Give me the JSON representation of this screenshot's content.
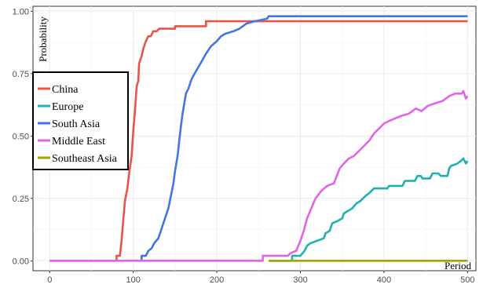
{
  "chart_data": {
    "type": "line",
    "title": "",
    "xlabel": "Period",
    "ylabel": "Probability",
    "xlim": [
      -20,
      510
    ],
    "ylim": [
      -0.04,
      1.02
    ],
    "x_ticks": [
      0,
      100,
      200,
      300,
      400,
      500
    ],
    "x_tick_labels": [
      "0",
      "100",
      "200",
      "300",
      "400",
      "500"
    ],
    "y_ticks": [
      0,
      0.25,
      0.5,
      0.75,
      1.0
    ],
    "y_tick_labels": [
      "0.00",
      "0.25",
      "0.50",
      "0.75",
      "1.00"
    ],
    "grid": true,
    "legend_position": "left",
    "series": [
      {
        "name": "China",
        "color": "#E8534A",
        "points": [
          [
            0,
            0
          ],
          [
            80,
            0
          ],
          [
            80,
            0.02
          ],
          [
            84,
            0.02
          ],
          [
            86,
            0.08
          ],
          [
            88,
            0.16
          ],
          [
            90,
            0.24
          ],
          [
            93,
            0.29
          ],
          [
            95,
            0.35
          ],
          [
            98,
            0.42
          ],
          [
            100,
            0.52
          ],
          [
            102,
            0.6
          ],
          [
            104,
            0.7
          ],
          [
            106,
            0.72
          ],
          [
            107,
            0.79
          ],
          [
            110,
            0.82
          ],
          [
            112,
            0.85
          ],
          [
            115,
            0.88
          ],
          [
            118,
            0.9
          ],
          [
            121,
            0.9
          ],
          [
            124,
            0.92
          ],
          [
            128,
            0.92
          ],
          [
            131,
            0.93
          ],
          [
            150,
            0.93
          ],
          [
            150,
            0.94
          ],
          [
            187,
            0.94
          ],
          [
            187,
            0.96
          ],
          [
            500,
            0.96
          ]
        ]
      },
      {
        "name": "Europe",
        "color": "#1FB1AF",
        "points": [
          [
            262,
            0
          ],
          [
            290,
            0
          ],
          [
            290,
            0.02
          ],
          [
            300,
            0.02
          ],
          [
            305,
            0.04
          ],
          [
            308,
            0.06
          ],
          [
            312,
            0.07
          ],
          [
            320,
            0.08
          ],
          [
            328,
            0.09
          ],
          [
            330,
            0.11
          ],
          [
            335,
            0.12
          ],
          [
            338,
            0.15
          ],
          [
            345,
            0.16
          ],
          [
            350,
            0.17
          ],
          [
            352,
            0.19
          ],
          [
            362,
            0.21
          ],
          [
            367,
            0.23
          ],
          [
            372,
            0.24
          ],
          [
            378,
            0.26
          ],
          [
            382,
            0.27
          ],
          [
            388,
            0.29
          ],
          [
            404,
            0.29
          ],
          [
            406,
            0.3
          ],
          [
            422,
            0.3
          ],
          [
            425,
            0.32
          ],
          [
            437,
            0.32
          ],
          [
            440,
            0.34
          ],
          [
            444,
            0.34
          ],
          [
            446,
            0.33
          ],
          [
            455,
            0.33
          ],
          [
            458,
            0.35
          ],
          [
            465,
            0.35
          ],
          [
            468,
            0.34
          ],
          [
            476,
            0.34
          ],
          [
            478,
            0.37
          ],
          [
            480,
            0.38
          ],
          [
            488,
            0.39
          ],
          [
            492,
            0.4
          ],
          [
            495,
            0.41
          ],
          [
            498,
            0.39
          ],
          [
            500,
            0.4
          ]
        ]
      },
      {
        "name": "South Asia",
        "color": "#4276E8",
        "points": [
          [
            108,
            0
          ],
          [
            110,
            0
          ],
          [
            110,
            0.02
          ],
          [
            115,
            0.02
          ],
          [
            118,
            0.04
          ],
          [
            122,
            0.05
          ],
          [
            125,
            0.07
          ],
          [
            130,
            0.09
          ],
          [
            134,
            0.13
          ],
          [
            138,
            0.17
          ],
          [
            142,
            0.21
          ],
          [
            145,
            0.26
          ],
          [
            148,
            0.31
          ],
          [
            150,
            0.36
          ],
          [
            153,
            0.42
          ],
          [
            155,
            0.48
          ],
          [
            157,
            0.54
          ],
          [
            159,
            0.59
          ],
          [
            161,
            0.63
          ],
          [
            163,
            0.67
          ],
          [
            166,
            0.69
          ],
          [
            170,
            0.73
          ],
          [
            175,
            0.76
          ],
          [
            182,
            0.8
          ],
          [
            187,
            0.83
          ],
          [
            193,
            0.86
          ],
          [
            200,
            0.88
          ],
          [
            205,
            0.9
          ],
          [
            210,
            0.91
          ],
          [
            220,
            0.92
          ],
          [
            227,
            0.93
          ],
          [
            235,
            0.95
          ],
          [
            245,
            0.96
          ],
          [
            260,
            0.97
          ],
          [
            262,
            0.98
          ],
          [
            500,
            0.98
          ]
        ]
      },
      {
        "name": "Middle East",
        "color": "#E164E8",
        "points": [
          [
            0,
            0
          ],
          [
            255,
            0
          ],
          [
            255,
            0.02
          ],
          [
            285,
            0.02
          ],
          [
            288,
            0.03
          ],
          [
            295,
            0.04
          ],
          [
            300,
            0.08
          ],
          [
            304,
            0.12
          ],
          [
            308,
            0.17
          ],
          [
            313,
            0.21
          ],
          [
            318,
            0.25
          ],
          [
            325,
            0.28
          ],
          [
            332,
            0.3
          ],
          [
            340,
            0.31
          ],
          [
            347,
            0.37
          ],
          [
            352,
            0.39
          ],
          [
            358,
            0.41
          ],
          [
            364,
            0.42
          ],
          [
            370,
            0.44
          ],
          [
            376,
            0.46
          ],
          [
            382,
            0.48
          ],
          [
            388,
            0.51
          ],
          [
            394,
            0.53
          ],
          [
            400,
            0.55
          ],
          [
            406,
            0.56
          ],
          [
            413,
            0.57
          ],
          [
            420,
            0.58
          ],
          [
            430,
            0.59
          ],
          [
            438,
            0.61
          ],
          [
            445,
            0.6
          ],
          [
            452,
            0.62
          ],
          [
            460,
            0.63
          ],
          [
            470,
            0.64
          ],
          [
            478,
            0.66
          ],
          [
            485,
            0.67
          ],
          [
            493,
            0.67
          ],
          [
            495,
            0.68
          ],
          [
            498,
            0.65
          ],
          [
            500,
            0.66
          ]
        ]
      },
      {
        "name": "Southeast Asia",
        "color": "#A3A500",
        "points": [
          [
            262,
            0
          ],
          [
            500,
            0
          ]
        ]
      }
    ]
  }
}
